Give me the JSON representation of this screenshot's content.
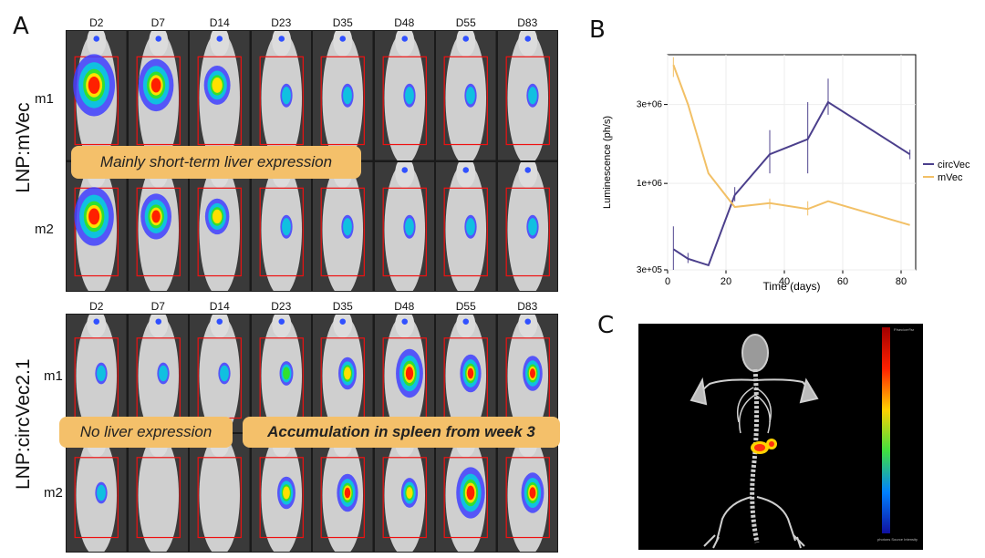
{
  "panels": {
    "A": "A",
    "B": "B",
    "C": "C"
  },
  "groups": [
    {
      "name": "LNP:mVec",
      "days": [
        "D2",
        "D7",
        "D14",
        "D23",
        "D35",
        "D48",
        "D55",
        "D83"
      ],
      "mice": [
        "m1",
        "m2"
      ],
      "signal": [
        [
          0.95,
          0.8,
          0.6,
          0.35,
          0.3,
          0.15,
          0.35,
          0.2
        ],
        [
          0.9,
          0.7,
          0.55,
          0.2,
          0.1,
          0.1,
          0.2,
          0.05
        ]
      ],
      "liver": [
        1,
        1,
        1,
        0,
        0,
        0,
        0,
        0
      ]
    },
    {
      "name": "LNP:circVec2.1",
      "days": [
        "D2",
        "D7",
        "D14",
        "D23",
        "D35",
        "D48",
        "D55",
        "D83"
      ],
      "mice": [
        "m1",
        "m2"
      ],
      "signal": [
        [
          0.05,
          0.25,
          0.05,
          0.45,
          0.6,
          0.9,
          0.7,
          0.65
        ],
        [
          0.25,
          0.0,
          0.0,
          0.6,
          0.7,
          0.55,
          0.95,
          0.75
        ]
      ],
      "liver": [
        0,
        0,
        0,
        0,
        0,
        0,
        0,
        0
      ]
    }
  ],
  "callouts": {
    "mvec": "Mainly short-term liver expression",
    "noliver": "No liver expression",
    "spleen": "Accumulation in spleen from week 3"
  },
  "chart_data": {
    "type": "line",
    "title": "",
    "xlabel": "Time (days)",
    "ylabel": "Luminescence (ph/s)",
    "xlim": [
      0,
      85
    ],
    "ylim": [
      300000,
      6000000
    ],
    "yscale": "log",
    "xticks": [
      0,
      20,
      40,
      60,
      80
    ],
    "yticks": [
      {
        "v": 300000,
        "label": "3e+05"
      },
      {
        "v": 1000000,
        "label": "1e+06"
      },
      {
        "v": 3000000,
        "label": "3e+06"
      }
    ],
    "series": [
      {
        "name": "circVec",
        "color": "#4b3f8c",
        "x": [
          2,
          7,
          14,
          23,
          35,
          48,
          55,
          83
        ],
        "y": [
          400000,
          350000,
          320000,
          850000,
          1500000,
          1850000,
          3100000,
          1500000
        ],
        "err": [
          [
            300000,
            550000
          ],
          [
            330000,
            380000
          ],
          null,
          [
            780000,
            950000
          ],
          [
            1150000,
            2100000
          ],
          [
            1150000,
            3100000
          ],
          [
            2600000,
            4300000
          ],
          [
            1400000,
            1600000
          ]
        ]
      },
      {
        "name": "mVec",
        "color": "#f2c066",
        "x": [
          2,
          7,
          14,
          23,
          35,
          48,
          55,
          83
        ],
        "y": [
          5200000,
          3000000,
          1150000,
          720000,
          760000,
          700000,
          780000,
          560000
        ],
        "err": [
          [
            4400000,
            5800000
          ],
          null,
          null,
          null,
          [
            700000,
            810000
          ],
          [
            640000,
            780000
          ],
          null,
          null
        ]
      }
    ],
    "legend": [
      "circVec",
      "mVec"
    ]
  },
  "panelC": {
    "colorbar_top": "P/sec/cm²/sr",
    "colorbar_bottom": "photons Source Intensity"
  }
}
